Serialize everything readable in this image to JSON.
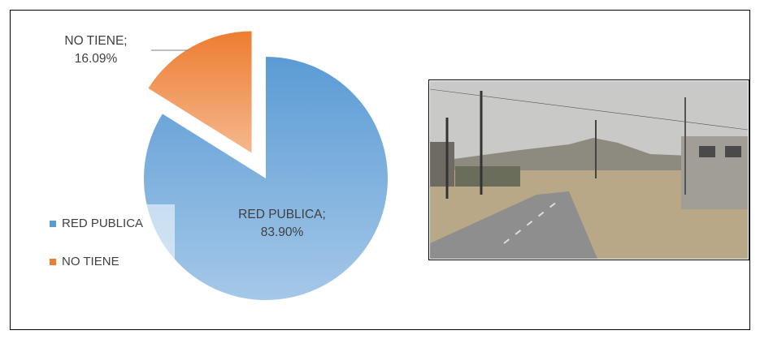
{
  "chart_data": {
    "type": "pie",
    "categories": [
      "RED PUBLICA",
      "NO TIENE"
    ],
    "values": [
      83.9,
      16.09
    ],
    "value_labels": [
      "RED PUBLICA; 83.90%",
      "NO TIENE; 16.09%"
    ],
    "colors": [
      "#5b9bd5",
      "#ed7d31"
    ],
    "exploded": [
      false,
      true
    ],
    "legend": "left"
  }
}
